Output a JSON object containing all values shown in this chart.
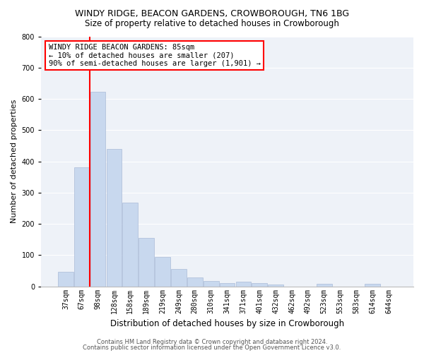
{
  "title1": "WINDY RIDGE, BEACON GARDENS, CROWBOROUGH, TN6 1BG",
  "title2": "Size of property relative to detached houses in Crowborough",
  "xlabel": "Distribution of detached houses by size in Crowborough",
  "ylabel": "Number of detached properties",
  "categories": [
    "37sqm",
    "67sqm",
    "98sqm",
    "128sqm",
    "158sqm",
    "189sqm",
    "219sqm",
    "249sqm",
    "280sqm",
    "310sqm",
    "341sqm",
    "371sqm",
    "401sqm",
    "432sqm",
    "462sqm",
    "492sqm",
    "523sqm",
    "553sqm",
    "583sqm",
    "614sqm",
    "644sqm"
  ],
  "values": [
    47,
    380,
    622,
    440,
    267,
    155,
    95,
    55,
    28,
    18,
    11,
    14,
    10,
    5,
    0,
    0,
    8,
    0,
    0,
    8,
    0
  ],
  "bar_color": "#c8d8ee",
  "bar_edge_color": "#aabbd8",
  "vline_color": "red",
  "vline_pos": 1.5,
  "ylim": [
    0,
    800
  ],
  "yticks": [
    0,
    100,
    200,
    300,
    400,
    500,
    600,
    700,
    800
  ],
  "annotation_text": "WINDY RIDGE BEACON GARDENS: 85sqm\n← 10% of detached houses are smaller (207)\n90% of semi-detached houses are larger (1,901) →",
  "annotation_box_color": "white",
  "annotation_box_edge": "red",
  "footer1": "Contains HM Land Registry data © Crown copyright and database right 2024.",
  "footer2": "Contains public sector information licensed under the Open Government Licence v3.0.",
  "plot_bg_color": "#eef2f8",
  "grid_color": "white",
  "title_fontsize": 9,
  "subtitle_fontsize": 8.5,
  "ylabel_fontsize": 8,
  "xlabel_fontsize": 8.5,
  "tick_fontsize": 7,
  "annotation_fontsize": 7.5,
  "footer_fontsize": 6
}
